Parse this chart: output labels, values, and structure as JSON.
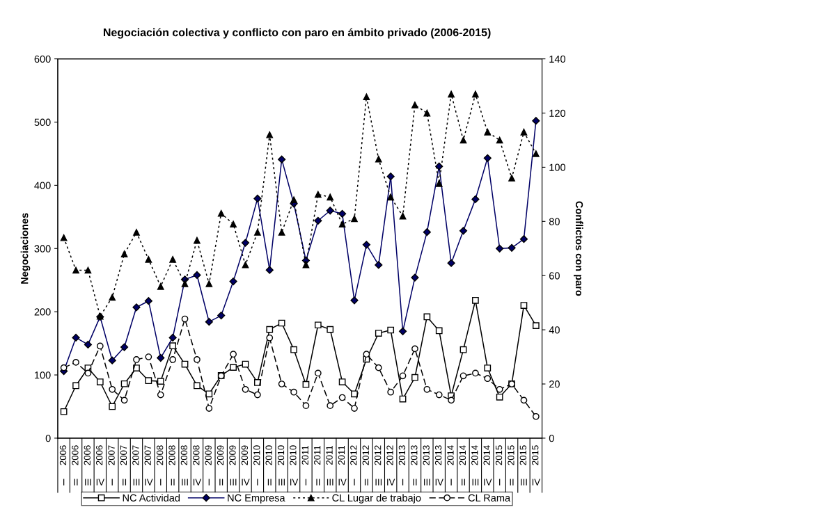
{
  "chart_data": {
    "type": "line",
    "title": "Negociación colectiva y conflicto con paro en ámbito privado (2006-2015)",
    "ylabel": "Negociaciones",
    "y2label": "Conflictos con paro",
    "categories": [
      "2006 I",
      "2006 II",
      "2006 III",
      "2006 IV",
      "2007 I",
      "2007 II",
      "2007 III",
      "2007 IV",
      "2008 I",
      "2008 II",
      "2008 III",
      "2008 IV",
      "2009 I",
      "2009 II",
      "2009 III",
      "2009 IV",
      "2010 I",
      "2010 II",
      "2010 III",
      "2010 IV",
      "2011 I",
      "2011 II",
      "2011 III",
      "2011 IV",
      "2012 I",
      "2012 II",
      "2012 III",
      "2012 IV",
      "2013 I",
      "2013 II",
      "2013 III",
      "2013 IV",
      "2014 I",
      "2014 II",
      "2014 III",
      "2014 IV",
      "2015 I",
      "2015 II",
      "2015 III",
      "2015 IV"
    ],
    "series": [
      {
        "name": "NC Actividad",
        "color": "#000000",
        "marker": "square",
        "line_style": "solid",
        "values": [
          42,
          83,
          111,
          89,
          50,
          86,
          111,
          91,
          90,
          146,
          117,
          83,
          70,
          99,
          112,
          117,
          88,
          172,
          182,
          140,
          85,
          179,
          172,
          89,
          70,
          125,
          166,
          171,
          62,
          96,
          192,
          170,
          67,
          140,
          218,
          111,
          65,
          86,
          210,
          178
        ]
      },
      {
        "name": "NC Empresa",
        "color": "#000066",
        "marker": "diamond",
        "line_style": "solid",
        "values": [
          106,
          159,
          148,
          192,
          123,
          144,
          207,
          217,
          127,
          159,
          251,
          258,
          184,
          194,
          248,
          309,
          379,
          266,
          441,
          371,
          281,
          344,
          360,
          355,
          218,
          306,
          274,
          414,
          169,
          254,
          326,
          430,
          277,
          328,
          378,
          443,
          300,
          301,
          315,
          502
        ]
      },
      {
        "name": "CL Lugar de trabajo",
        "color": "#000000",
        "marker": "triangle",
        "line_style": "dotted",
        "axis": "y2",
        "values": [
          74,
          62,
          62,
          45,
          52,
          68,
          76,
          66,
          56,
          66,
          57,
          73,
          57,
          83,
          79,
          64,
          76,
          112,
          76,
          88,
          64,
          90,
          89,
          79,
          81,
          126,
          103,
          89,
          82,
          123,
          120,
          94,
          127,
          110,
          127,
          113,
          110,
          96,
          113,
          105
        ]
      },
      {
        "name": "CL Rama",
        "color": "#000000",
        "marker": "circle",
        "line_style": "dashed",
        "axis": "y2",
        "values": [
          26,
          28,
          24,
          34,
          18,
          14,
          29,
          30,
          16,
          29,
          44,
          29,
          11,
          23,
          31,
          18,
          16,
          37,
          20,
          17,
          12,
          24,
          12,
          15,
          11,
          31,
          26,
          17,
          23,
          33,
          18,
          16,
          14,
          23,
          24,
          22,
          18,
          20,
          14,
          8
        ]
      }
    ],
    "ylim": [
      0,
      600
    ],
    "yticks": [
      0,
      100,
      200,
      300,
      400,
      500,
      600
    ],
    "y2lim": [
      0,
      140
    ],
    "y2ticks": [
      0,
      20,
      40,
      60,
      80,
      100,
      120,
      140
    ],
    "grid": false,
    "legend": "bottom"
  }
}
